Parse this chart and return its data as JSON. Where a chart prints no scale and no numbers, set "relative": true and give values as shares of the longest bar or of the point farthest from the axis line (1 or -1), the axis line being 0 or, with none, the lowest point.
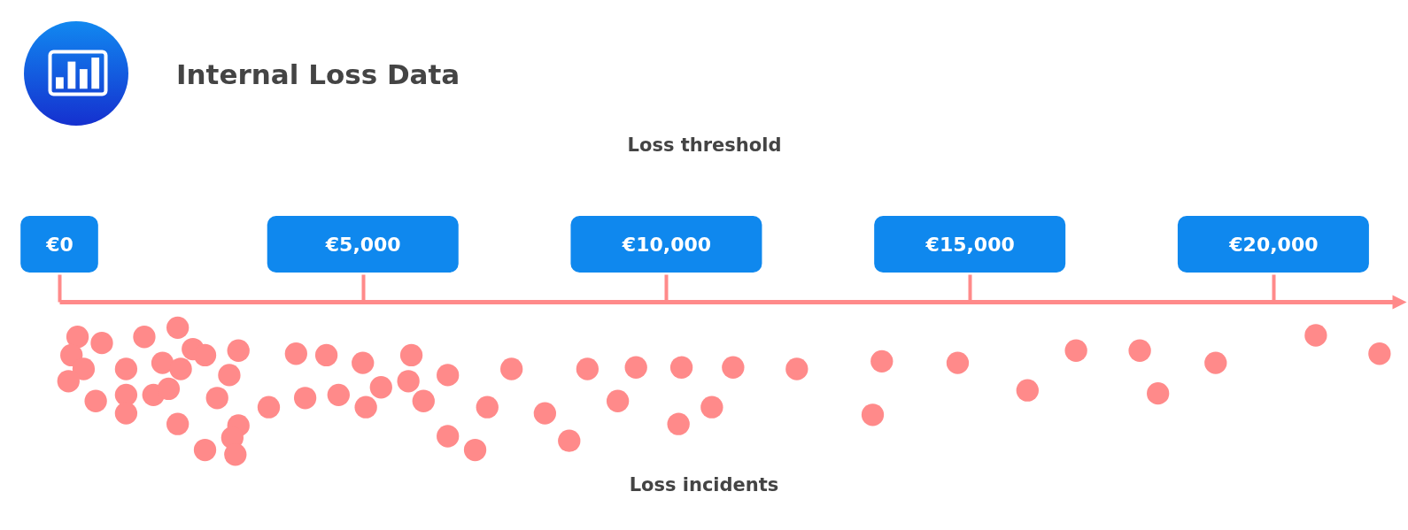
{
  "chart_data": {
    "type": "scatter",
    "title": "Internal Loss Data",
    "xlabel": "Loss threshold",
    "annotations": [
      "Loss incidents"
    ],
    "x": [
      300,
      700,
      200,
      400,
      150,
      600,
      1400,
      1950,
      1100,
      1100,
      1100,
      1700,
      2200,
      2400,
      2000,
      1550,
      1800,
      1950,
      2950,
      2800,
      2600,
      2400,
      2950,
      2850,
      2900,
      3450,
      3900,
      4400,
      4050,
      4600,
      5000,
      5050,
      5300,
      5800,
      5750,
      6000,
      6400,
      6400,
      6850,
      7050,
      7450,
      8000,
      8400,
      8700,
      9200,
      9500,
      10250,
      10200,
      10750,
      11100,
      12150,
      13550,
      13400,
      14800,
      15950,
      16750,
      17800,
      18100,
      19050,
      20700,
      21750
    ],
    "values": [
      -0.23,
      -0.27,
      -0.35,
      -0.44,
      -0.52,
      -0.65,
      -0.23,
      -0.17,
      -0.44,
      -0.61,
      -0.73,
      -0.4,
      -0.31,
      -0.35,
      -0.44,
      -0.61,
      -0.57,
      -0.8,
      -0.32,
      -0.48,
      -0.63,
      -0.97,
      -0.81,
      -0.89,
      -1,
      -0.69,
      -0.34,
      -0.35,
      -0.63,
      -0.61,
      -0.4,
      -0.69,
      -0.56,
      -0.35,
      -0.52,
      -0.65,
      -0.48,
      -0.88,
      -0.97,
      -0.69,
      -0.44,
      -0.73,
      -0.91,
      -0.44,
      -0.65,
      -0.43,
      -0.43,
      -0.8,
      -0.69,
      -0.43,
      -0.44,
      -0.39,
      -0.74,
      -0.4,
      -0.58,
      -0.32,
      -0.32,
      -0.6,
      -0.4,
      -0.22,
      -0.34
    ],
    "color": "#ff8a8a",
    "relative": true,
    "marker": "circle",
    "xlim": [
      0,
      22000
    ],
    "xticks": [
      {
        "value": 0,
        "label": "€0"
      },
      {
        "value": 5000,
        "label": "€5,000"
      },
      {
        "value": 10000,
        "label": "€10,000"
      },
      {
        "value": 15000,
        "label": "€15,000"
      },
      {
        "value": 20000,
        "label": "€20,000"
      }
    ]
  }
}
